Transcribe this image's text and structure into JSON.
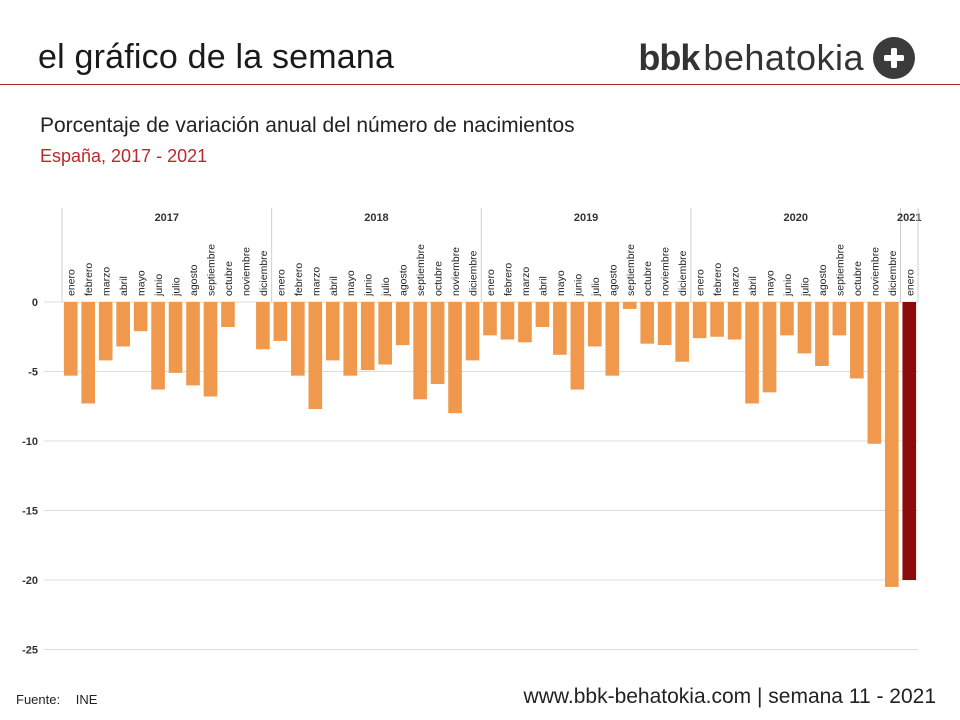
{
  "header": {
    "title": "el gráfico de la semana",
    "brand_bold": "bbk",
    "brand_light": "behatokia",
    "brand_icon": "plus-circle-icon"
  },
  "chart_title": "Porcentaje de variación anual del número de nacimientos",
  "chart_subtitle": "España, 2017 - 2021",
  "footer": {
    "source_label": "Fuente:",
    "source_value": "INE",
    "right_text": "www.bbk-behatokia.com | semana 11 - 2021"
  },
  "colors": {
    "bar": "#f0994d",
    "highlight": "#8b0a0a",
    "rule": "#b22222",
    "subtitle": "#c0262d"
  },
  "chart_data": {
    "type": "bar",
    "groups": [
      {
        "year": "2017",
        "months": [
          "enero",
          "febrero",
          "marzo",
          "abril",
          "mayo",
          "junio",
          "julio",
          "agosto",
          "septiembre",
          "octubre",
          "noviembre",
          "diciembre"
        ],
        "values": [
          -5.3,
          -7.3,
          -4.2,
          -3.2,
          -2.1,
          -6.3,
          -5.1,
          -6.0,
          -6.8,
          -1.8,
          0,
          -3.4
        ]
      },
      {
        "year": "2018",
        "months": [
          "enero",
          "febrero",
          "marzo",
          "abril",
          "mayo",
          "junio",
          "julio",
          "agosto",
          "septiembre",
          "octubre",
          "noviembre",
          "diciembre"
        ],
        "values": [
          -2.8,
          -5.3,
          -7.7,
          -4.2,
          -5.3,
          -4.9,
          -4.5,
          -3.1,
          -7.0,
          -5.9,
          -8.0,
          -4.2
        ]
      },
      {
        "year": "2019",
        "months": [
          "enero",
          "febrero",
          "marzo",
          "abril",
          "mayo",
          "junio",
          "julio",
          "agosto",
          "septiembre",
          "octubre",
          "noviembre",
          "diciembre"
        ],
        "values": [
          -2.4,
          -2.7,
          -2.9,
          -1.8,
          -3.8,
          -6.3,
          -3.2,
          -5.3,
          -0.5,
          -3.0,
          -3.1,
          -4.3
        ]
      },
      {
        "year": "2020",
        "months": [
          "enero",
          "febrero",
          "marzo",
          "abril",
          "mayo",
          "junio",
          "julio",
          "agosto",
          "septiembre",
          "octubre",
          "noviembre",
          "diciembre"
        ],
        "values": [
          -2.6,
          -2.5,
          -2.7,
          -7.3,
          -6.5,
          -2.4,
          -3.7,
          -4.6,
          -2.4,
          -5.5,
          -10.2,
          -20.5
        ]
      },
      {
        "year": "2021",
        "months": [
          "enero"
        ],
        "values": [
          -20.0
        ],
        "highlight": true
      }
    ],
    "yticks": [
      0,
      -5,
      -10,
      -15,
      -20,
      -25
    ],
    "ylim": [
      -25,
      0
    ],
    "grid": true
  }
}
